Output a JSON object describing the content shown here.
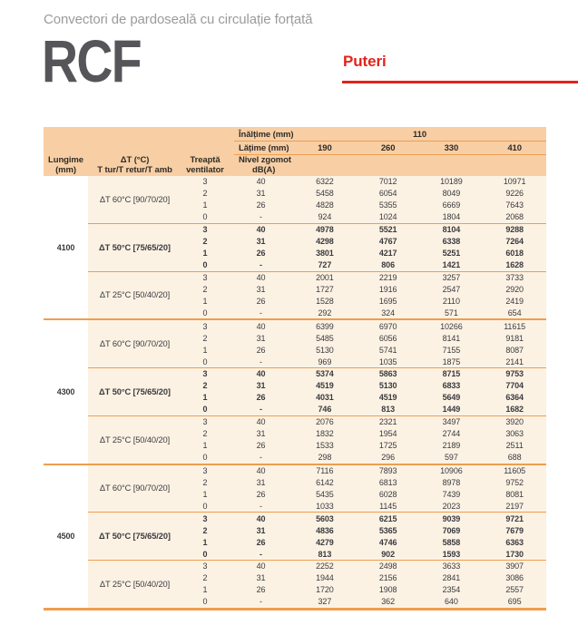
{
  "page": {
    "subtitle": "Convectori de pardoseală cu circulație forțată",
    "product_code": "RCF",
    "section_title": "Puteri"
  },
  "colors": {
    "accent_red": "#e2231c",
    "header_band_orange": "#f8cfa5",
    "body_cream": "#fcf2e3",
    "rule_orange": "#ee9d4f",
    "text_dark": "#3a3a40"
  },
  "table": {
    "header": {
      "inaltime_label": "Înălțime (mm)",
      "inaltime_value": "110",
      "latime_label": "Lățime (mm)",
      "width_values": [
        "190",
        "260",
        "330",
        "410"
      ],
      "lungime": [
        "Lungime",
        "(mm)"
      ],
      "dt": [
        "ΔT (°C)",
        "T tur/T retur/T amb"
      ],
      "treapta": [
        "Treaptă",
        "ventilator"
      ],
      "nivel": [
        "Nivel zgomot",
        "dB(A)"
      ]
    },
    "groups": [
      {
        "length": "4100",
        "sections": [
          {
            "dt": "ΔT 60°C [90/70/20]",
            "bold": false,
            "rows": [
              [
                "3",
                "40",
                "6322",
                "7012",
                "10189",
                "10971"
              ],
              [
                "2",
                "31",
                "5458",
                "6054",
                "8049",
                "9226"
              ],
              [
                "1",
                "26",
                "4828",
                "5355",
                "6669",
                "7643"
              ],
              [
                "0",
                "-",
                "924",
                "1024",
                "1804",
                "2068"
              ]
            ]
          },
          {
            "dt": "ΔT 50°C [75/65/20]",
            "bold": true,
            "rows": [
              [
                "3",
                "40",
                "4978",
                "5521",
                "8104",
                "9288"
              ],
              [
                "2",
                "31",
                "4298",
                "4767",
                "6338",
                "7264"
              ],
              [
                "1",
                "26",
                "3801",
                "4217",
                "5251",
                "6018"
              ],
              [
                "0",
                "-",
                "727",
                "806",
                "1421",
                "1628"
              ]
            ]
          },
          {
            "dt": "ΔT 25°C [50/40/20]",
            "bold": false,
            "rows": [
              [
                "3",
                "40",
                "2001",
                "2219",
                "3257",
                "3733"
              ],
              [
                "2",
                "31",
                "1727",
                "1916",
                "2547",
                "2920"
              ],
              [
                "1",
                "26",
                "1528",
                "1695",
                "2110",
                "2419"
              ],
              [
                "0",
                "-",
                "292",
                "324",
                "571",
                "654"
              ]
            ]
          }
        ]
      },
      {
        "length": "4300",
        "sections": [
          {
            "dt": "ΔT 60°C [90/70/20]",
            "bold": false,
            "rows": [
              [
                "3",
                "40",
                "6399",
                "6970",
                "10266",
                "11615"
              ],
              [
                "2",
                "31",
                "5485",
                "6056",
                "8141",
                "9181"
              ],
              [
                "1",
                "26",
                "5130",
                "5741",
                "7155",
                "8087"
              ],
              [
                "0",
                "-",
                "969",
                "1035",
                "1875",
                "2141"
              ]
            ]
          },
          {
            "dt": "ΔT 50°C [75/65/20]",
            "bold": true,
            "rows": [
              [
                "3",
                "40",
                "5374",
                "5863",
                "8715",
                "9753"
              ],
              [
                "2",
                "31",
                "4519",
                "5130",
                "6833",
                "7704"
              ],
              [
                "1",
                "26",
                "4031",
                "4519",
                "5649",
                "6364"
              ],
              [
                "0",
                "-",
                "746",
                "813",
                "1449",
                "1682"
              ]
            ]
          },
          {
            "dt": "ΔT 25°C [50/40/20]",
            "bold": false,
            "rows": [
              [
                "3",
                "40",
                "2076",
                "2321",
                "3497",
                "3920"
              ],
              [
                "2",
                "31",
                "1832",
                "1954",
                "2744",
                "3063"
              ],
              [
                "1",
                "26",
                "1533",
                "1725",
                "2189",
                "2511"
              ],
              [
                "0",
                "-",
                "298",
                "296",
                "597",
                "688"
              ]
            ]
          }
        ]
      },
      {
        "length": "4500",
        "sections": [
          {
            "dt": "ΔT 60°C [90/70/20]",
            "bold": false,
            "rows": [
              [
                "3",
                "40",
                "7116",
                "7893",
                "10906",
                "11605"
              ],
              [
                "2",
                "31",
                "6142",
                "6813",
                "8978",
                "9752"
              ],
              [
                "1",
                "26",
                "5435",
                "6028",
                "7439",
                "8081"
              ],
              [
                "0",
                "-",
                "1033",
                "1145",
                "2023",
                "2197"
              ]
            ]
          },
          {
            "dt": "ΔT 50°C [75/65/20]",
            "bold": true,
            "rows": [
              [
                "3",
                "40",
                "5603",
                "6215",
                "9039",
                "9721"
              ],
              [
                "2",
                "31",
                "4836",
                "5365",
                "7069",
                "7679"
              ],
              [
                "1",
                "26",
                "4279",
                "4746",
                "5858",
                "6363"
              ],
              [
                "0",
                "-",
                "813",
                "902",
                "1593",
                "1730"
              ]
            ]
          },
          {
            "dt": "ΔT 25°C [50/40/20]",
            "bold": false,
            "rows": [
              [
                "3",
                "40",
                "2252",
                "2498",
                "3633",
                "3907"
              ],
              [
                "2",
                "31",
                "1944",
                "2156",
                "2841",
                "3086"
              ],
              [
                "1",
                "26",
                "1720",
                "1908",
                "2354",
                "2557"
              ],
              [
                "0",
                "-",
                "327",
                "362",
                "640",
                "695"
              ]
            ]
          }
        ]
      }
    ]
  }
}
